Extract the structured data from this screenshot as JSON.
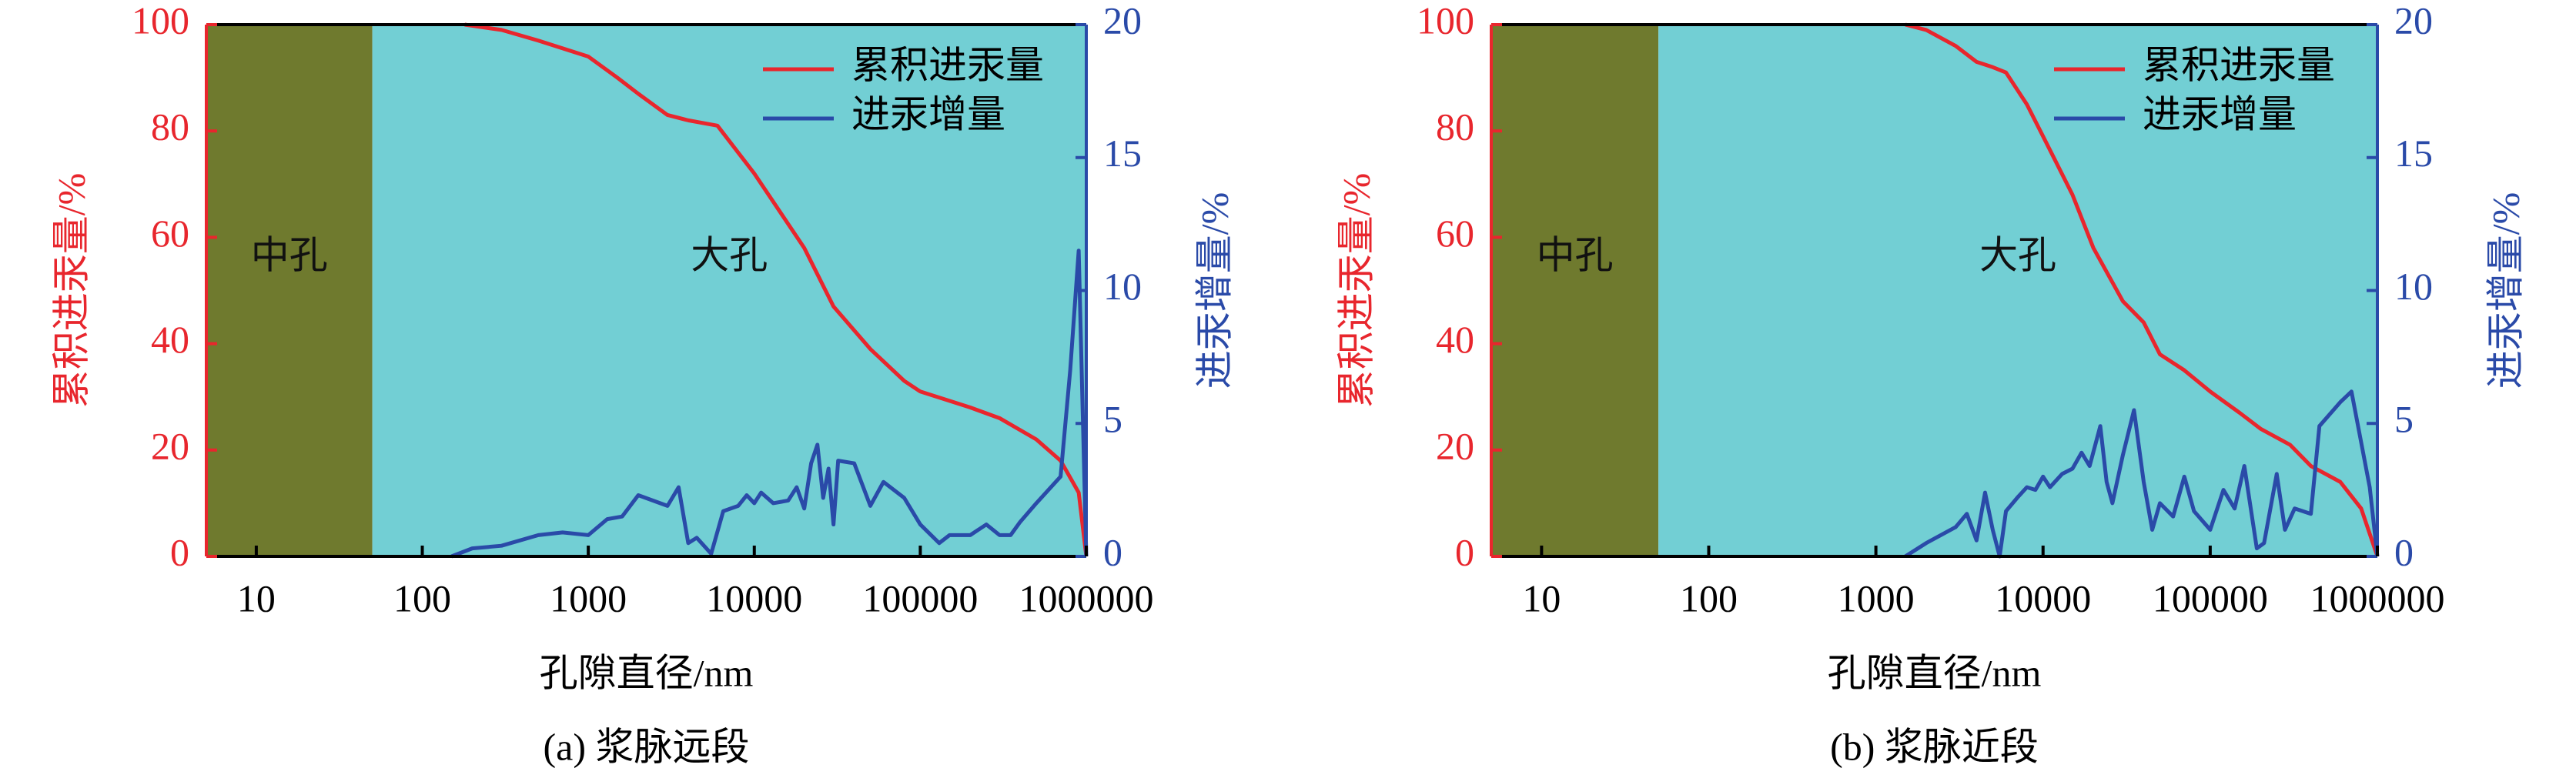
{
  "chart_data": [
    {
      "type": "line",
      "caption": "(a) 浆脉远段",
      "xlabel": "孔隙直径/nm",
      "ylabel": "累积进汞量/%",
      "y2label": "进汞增量/%",
      "xscale": "log",
      "xlim": [
        5,
        1000000
      ],
      "xticks": [
        10,
        100,
        1000,
        10000,
        100000,
        1000000
      ],
      "ylim": [
        0,
        100
      ],
      "yticks": [
        0,
        20,
        40,
        60,
        80,
        100
      ],
      "y2lim": [
        0,
        20
      ],
      "y2ticks": [
        0,
        5,
        10,
        15,
        20
      ],
      "legend": "upper right",
      "regions": [
        {
          "label": "中孔",
          "xlim": [
            5,
            50
          ],
          "color": "#6f7a2e"
        },
        {
          "label": "大孔",
          "xlim": [
            50,
            1000000
          ],
          "color": "#72cfd4"
        }
      ],
      "series": [
        {
          "name": "累积进汞量",
          "color": "#e8262d",
          "x": [
            180,
            300,
            500,
            1000,
            1500,
            2000,
            3000,
            4000,
            6000,
            10000,
            20000,
            30000,
            50000,
            80000,
            100000,
            200000,
            300000,
            500000,
            700000,
            900000,
            1000000
          ],
          "values": [
            100,
            99,
            97,
            94,
            90,
            87,
            83,
            82,
            81,
            72,
            58,
            47,
            39,
            33,
            31,
            28,
            26,
            22,
            18,
            12,
            0
          ]
        },
        {
          "name": "进汞增量",
          "color": "#2a4aa8",
          "axis": "y2",
          "x": [
            150,
            200,
            300,
            500,
            700,
            1000,
            1300,
            1600,
            2000,
            3000,
            3500,
            4000,
            4500,
            5500,
            6500,
            8000,
            9000,
            10000,
            11000,
            13000,
            16000,
            18000,
            20000,
            22000,
            24000,
            26000,
            28000,
            30000,
            32000,
            40000,
            50000,
            60000,
            80000,
            100000,
            130000,
            150000,
            200000,
            250000,
            300000,
            350000,
            400000,
            500000,
            700000,
            800000,
            900000,
            1000000
          ],
          "values": [
            0,
            0.3,
            0.4,
            0.8,
            0.9,
            0.8,
            1.4,
            1.5,
            2.3,
            1.9,
            2.6,
            0.5,
            0.7,
            0.1,
            1.7,
            1.9,
            2.3,
            2,
            2.4,
            2,
            2.1,
            2.6,
            1.8,
            3.5,
            4.2,
            2.2,
            3.3,
            1.2,
            3.6,
            3.5,
            1.9,
            2.8,
            2.2,
            1.2,
            0.5,
            0.8,
            0.8,
            1.2,
            0.8,
            0.8,
            1.3,
            2,
            3,
            7,
            11.5,
            0
          ]
        }
      ]
    },
    {
      "type": "line",
      "caption": "(b) 浆脉近段",
      "xlabel": "孔隙直径/nm",
      "ylabel": "累积进汞量/%",
      "y2label": "进汞增量/%",
      "xscale": "log",
      "xlim": [
        5,
        1000000
      ],
      "xticks": [
        10,
        100,
        1000,
        10000,
        100000,
        1000000
      ],
      "ylim": [
        0,
        100
      ],
      "yticks": [
        0,
        20,
        40,
        60,
        80,
        100
      ],
      "y2lim": [
        0,
        20
      ],
      "y2ticks": [
        0,
        5,
        10,
        15,
        20
      ],
      "legend": "upper right",
      "regions": [
        {
          "label": "中孔",
          "xlim": [
            5,
            50
          ],
          "color": "#6f7a2e"
        },
        {
          "label": "大孔",
          "xlim": [
            50,
            1000000
          ],
          "color": "#72cfd4"
        }
      ],
      "series": [
        {
          "name": "累积进汞量",
          "color": "#e8262d",
          "x": [
            1500,
            2000,
            3000,
            4000,
            5000,
            6000,
            8000,
            10000,
            15000,
            20000,
            30000,
            40000,
            50000,
            70000,
            100000,
            150000,
            200000,
            300000,
            400000,
            600000,
            800000,
            1000000
          ],
          "values": [
            100,
            99,
            96,
            93,
            92,
            91,
            85,
            79,
            68,
            58,
            48,
            44,
            38,
            35,
            31,
            27,
            24,
            21,
            17,
            14,
            9,
            0
          ]
        },
        {
          "name": "进汞增量",
          "color": "#2a4aa8",
          "axis": "y2",
          "x": [
            1500,
            2000,
            3000,
            3500,
            4000,
            4500,
            5000,
            5500,
            6000,
            7000,
            8000,
            9000,
            10000,
            11000,
            13000,
            15000,
            17000,
            19000,
            22000,
            24000,
            26000,
            30000,
            35000,
            40000,
            45000,
            50000,
            60000,
            70000,
            80000,
            100000,
            120000,
            140000,
            160000,
            190000,
            210000,
            250000,
            280000,
            320000,
            400000,
            450000,
            600000,
            700000,
            900000,
            1000000
          ],
          "values": [
            0,
            0.5,
            1.1,
            1.6,
            0.6,
            2.4,
            1,
            0,
            1.7,
            2.2,
            2.6,
            2.5,
            3,
            2.6,
            3.1,
            3.3,
            3.9,
            3.4,
            4.9,
            2.8,
            2,
            3.8,
            5.5,
            2.8,
            1,
            2,
            1.5,
            3,
            1.7,
            1,
            2.5,
            1.8,
            3.4,
            0.3,
            0.5,
            3.1,
            1,
            1.8,
            1.6,
            4.9,
            5.8,
            6.2,
            2.6,
            0
          ]
        }
      ]
    }
  ]
}
